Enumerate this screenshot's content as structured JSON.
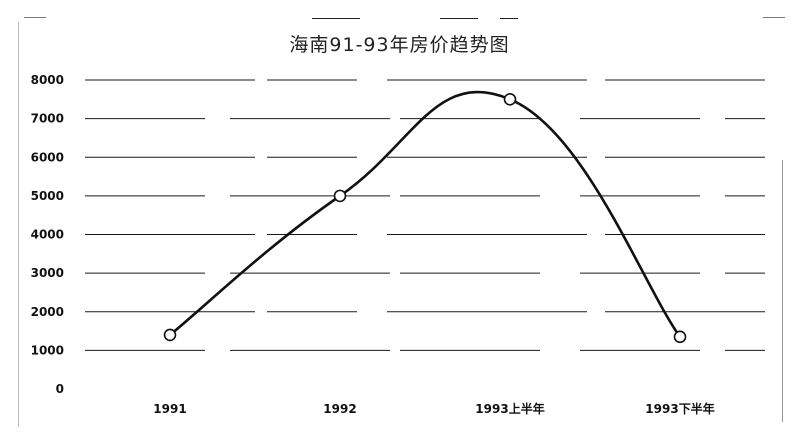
{
  "chart_data": {
    "type": "line",
    "title": "海南91-93年房价趋势图",
    "categories": [
      "1991",
      "1992",
      "1993上半年",
      "1993下半年"
    ],
    "values": [
      1400,
      5000,
      7500,
      1350
    ],
    "ylim": [
      0,
      8000
    ],
    "yticks": [
      "0",
      "1000",
      "2000",
      "3000",
      "4000",
      "5000",
      "6000",
      "7000",
      "8000"
    ],
    "grid": true,
    "smooth": true,
    "marker": "circle",
    "line_color": "#111111"
  }
}
